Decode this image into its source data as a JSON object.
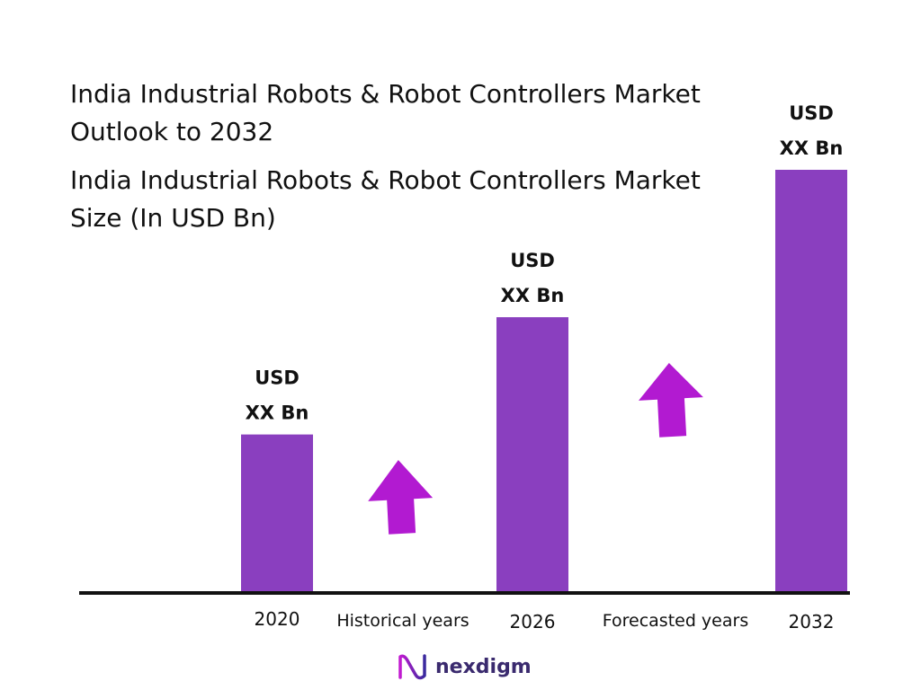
{
  "colors": {
    "bar": "#8a3fbf",
    "arrow": "#b21ad1",
    "axis": "#111111",
    "brand": "#3a2a6e"
  },
  "chart_data": {
    "type": "bar",
    "title": "India Industrial Robots & Robot Controllers Market Outlook to 2032",
    "subtitle": "India Industrial Robots & Robot Controllers Market Size (In USD Bn)",
    "categories": [
      "2020",
      "2026",
      "2032"
    ],
    "values": [
      1.0,
      1.74,
      2.67
    ],
    "data_labels": [
      [
        "USD",
        "XX Bn"
      ],
      [
        "USD",
        "XX Bn"
      ],
      [
        "USD",
        "XX Bn"
      ]
    ],
    "periods": [
      "Historical years",
      "Forecasted years"
    ],
    "growth_arrows": [
      "up-arrow-icon",
      "up-arrow-icon"
    ],
    "ylim": [
      0,
      2.67
    ],
    "grid": false,
    "legend": "none"
  },
  "brand": {
    "name": "nexdigm",
    "icon": "nexdigm-logo-icon"
  }
}
